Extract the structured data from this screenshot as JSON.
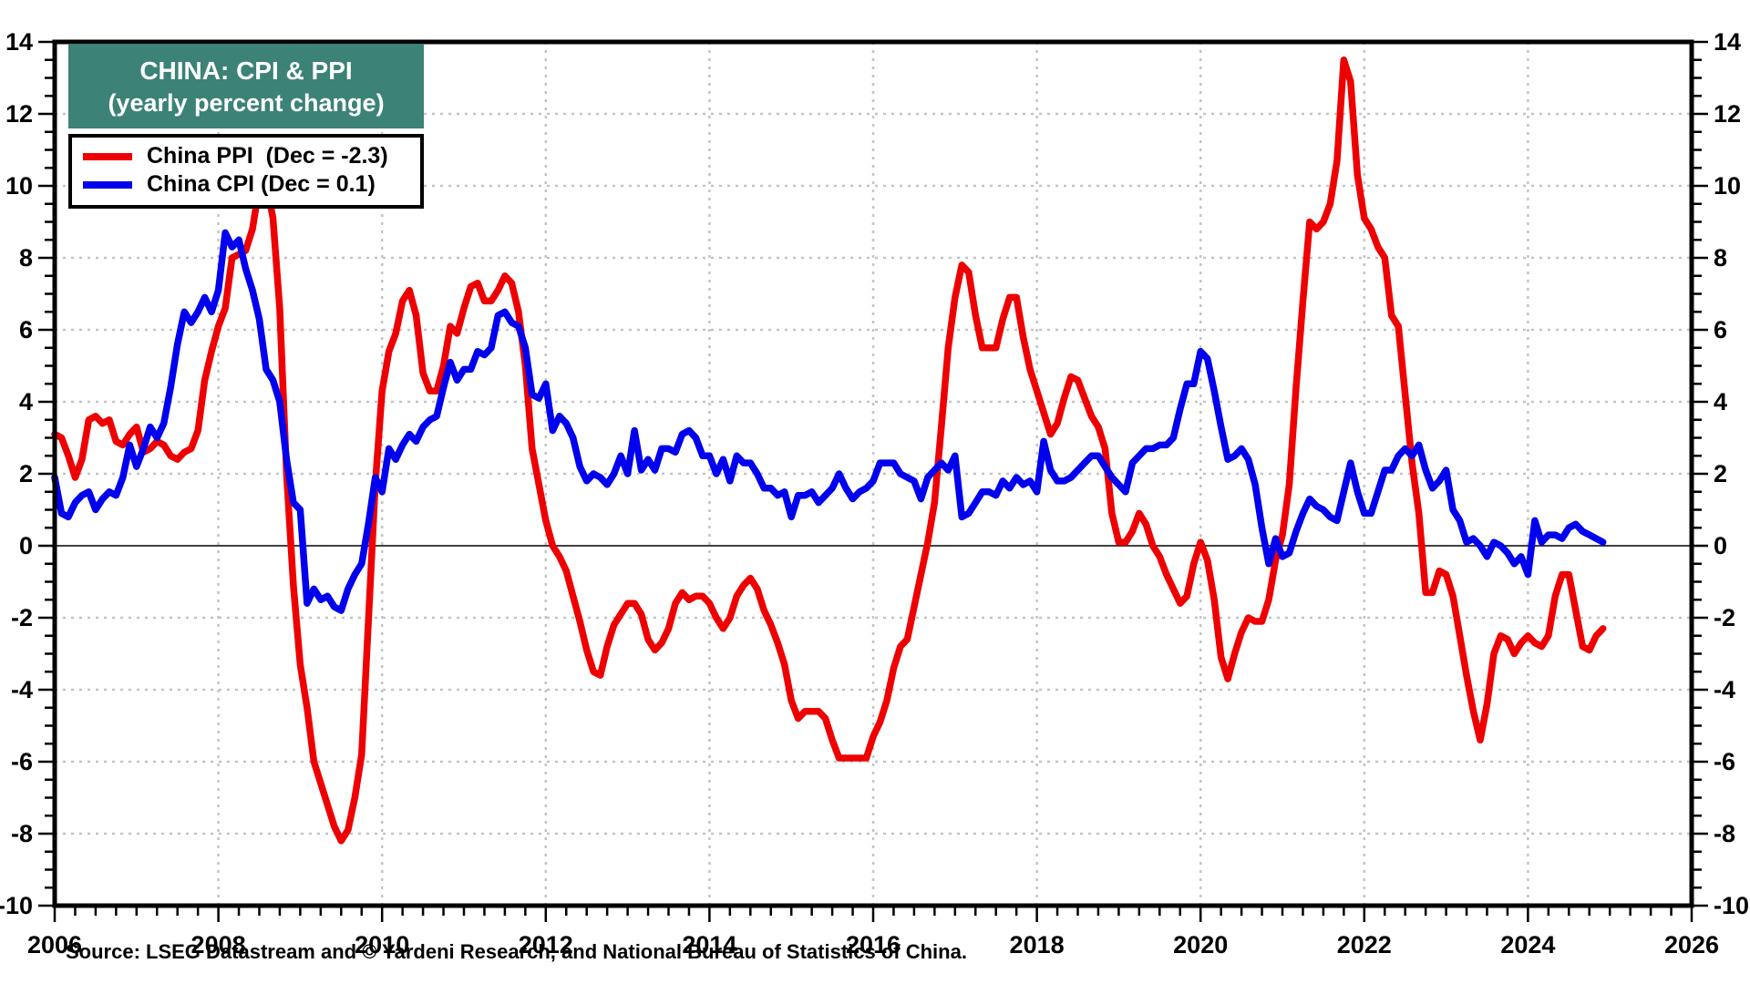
{
  "title": {
    "line1": "CHINA: CPI & PPI",
    "line2": "(yearly percent change)",
    "box_color": "#3C8276"
  },
  "legend": [
    {
      "label": "China PPI  (Dec = -2.3)",
      "color": "#ee0000"
    },
    {
      "label": "China CPI (Dec = 0.1)",
      "color": "#0000ee"
    }
  ],
  "source": "Source: LSEG Datastream and © Yardeni Research, and National Bureau of Statistics of China.",
  "chart_data": {
    "type": "line",
    "title": "CHINA: CPI & PPI (yearly percent change)",
    "xlabel": "",
    "ylabel": "",
    "xlim": [
      2006,
      2026
    ],
    "ylim": [
      -10,
      14
    ],
    "grid": "dotted",
    "legend_position": "top-left",
    "x_unit": "monthly, Jan 2006 - Dec 2024",
    "x_start_year": 2006,
    "x_tick_labels": [
      "2006",
      "2008",
      "2010",
      "2012",
      "2014",
      "2016",
      "2018",
      "2020",
      "2022",
      "2024",
      "2026"
    ],
    "y_ticks": [
      14,
      12,
      10,
      8,
      6,
      4,
      2,
      0,
      -2,
      -4,
      -6,
      -8,
      -10
    ],
    "grid_years": [
      2008,
      2010,
      2012,
      2014,
      2016,
      2018,
      2020,
      2022,
      2024
    ],
    "grid_values": [
      12,
      10,
      8,
      6,
      4,
      2,
      -2,
      -4,
      -6,
      -8
    ],
    "series": [
      {
        "id": "ppi",
        "name": "China PPI",
        "color": "#ee0000",
        "last_label": "Dec = -2.3",
        "values": [
          3.1,
          3.0,
          2.5,
          1.9,
          2.4,
          3.5,
          3.6,
          3.4,
          3.5,
          2.9,
          2.8,
          3.1,
          3.3,
          2.6,
          2.7,
          2.9,
          2.8,
          2.5,
          2.4,
          2.6,
          2.7,
          3.2,
          4.6,
          5.4,
          6.1,
          6.6,
          8.0,
          8.1,
          8.2,
          8.8,
          10.0,
          10.1,
          9.1,
          6.6,
          2.0,
          -1.1,
          -3.3,
          -4.5,
          -6.0,
          -6.6,
          -7.2,
          -7.8,
          -8.2,
          -7.9,
          -7.0,
          -5.8,
          -2.1,
          1.7,
          4.3,
          5.4,
          5.9,
          6.8,
          7.1,
          6.4,
          4.8,
          4.3,
          4.3,
          5.0,
          6.1,
          5.9,
          6.6,
          7.2,
          7.3,
          6.8,
          6.8,
          7.1,
          7.5,
          7.3,
          6.5,
          5.0,
          2.7,
          1.7,
          0.7,
          0.0,
          -0.3,
          -0.7,
          -1.4,
          -2.1,
          -2.9,
          -3.5,
          -3.6,
          -2.8,
          -2.2,
          -1.9,
          -1.6,
          -1.6,
          -1.9,
          -2.6,
          -2.9,
          -2.7,
          -2.3,
          -1.6,
          -1.3,
          -1.5,
          -1.4,
          -1.4,
          -1.6,
          -2.0,
          -2.3,
          -2.0,
          -1.4,
          -1.1,
          -0.9,
          -1.2,
          -1.8,
          -2.2,
          -2.7,
          -3.3,
          -4.3,
          -4.8,
          -4.6,
          -4.6,
          -4.6,
          -4.8,
          -5.4,
          -5.9,
          -5.9,
          -5.9,
          -5.9,
          -5.9,
          -5.3,
          -4.9,
          -4.3,
          -3.4,
          -2.8,
          -2.6,
          -1.7,
          -0.8,
          0.1,
          1.2,
          3.3,
          5.5,
          6.9,
          7.8,
          7.6,
          6.4,
          5.5,
          5.5,
          5.5,
          6.3,
          6.9,
          6.9,
          5.8,
          4.9,
          4.3,
          3.7,
          3.1,
          3.4,
          4.1,
          4.7,
          4.6,
          4.1,
          3.6,
          3.3,
          2.7,
          0.9,
          0.1,
          0.1,
          0.4,
          0.9,
          0.6,
          0.0,
          -0.3,
          -0.8,
          -1.2,
          -1.6,
          -1.4,
          -0.5,
          0.1,
          -0.4,
          -1.5,
          -3.1,
          -3.7,
          -3.0,
          -2.4,
          -2.0,
          -2.1,
          -2.1,
          -1.5,
          -0.4,
          0.3,
          1.7,
          4.4,
          6.8,
          9.0,
          8.8,
          9.0,
          9.5,
          10.7,
          13.5,
          12.9,
          10.3,
          9.1,
          8.8,
          8.3,
          8.0,
          6.4,
          6.1,
          4.2,
          2.3,
          0.9,
          -1.3,
          -1.3,
          -0.7,
          -0.8,
          -1.4,
          -2.5,
          -3.6,
          -4.6,
          -5.4,
          -4.4,
          -3.0,
          -2.5,
          -2.6,
          -3.0,
          -2.7,
          -2.5,
          -2.7,
          -2.8,
          -2.5,
          -1.4,
          -0.8,
          -0.8,
          -1.8,
          -2.8,
          -2.9,
          -2.5,
          -2.3
        ]
      },
      {
        "id": "cpi",
        "name": "China CPI",
        "color": "#0000ee",
        "last_label": "Dec = 0.1",
        "values": [
          1.9,
          0.9,
          0.8,
          1.2,
          1.4,
          1.5,
          1.0,
          1.3,
          1.5,
          1.4,
          1.9,
          2.8,
          2.2,
          2.7,
          3.3,
          3.0,
          3.4,
          4.4,
          5.6,
          6.5,
          6.2,
          6.5,
          6.9,
          6.5,
          7.1,
          8.7,
          8.3,
          8.5,
          7.7,
          7.1,
          6.3,
          4.9,
          4.6,
          4.0,
          2.4,
          1.2,
          1.0,
          -1.6,
          -1.2,
          -1.5,
          -1.4,
          -1.7,
          -1.8,
          -1.2,
          -0.8,
          -0.5,
          0.6,
          1.9,
          1.5,
          2.7,
          2.4,
          2.8,
          3.1,
          2.9,
          3.3,
          3.5,
          3.6,
          4.4,
          5.1,
          4.6,
          4.9,
          4.9,
          5.4,
          5.3,
          5.5,
          6.4,
          6.5,
          6.2,
          6.1,
          5.5,
          4.2,
          4.1,
          4.5,
          3.2,
          3.6,
          3.4,
          3.0,
          2.2,
          1.8,
          2.0,
          1.9,
          1.7,
          2.0,
          2.5,
          2.0,
          3.2,
          2.1,
          2.4,
          2.1,
          2.7,
          2.7,
          2.6,
          3.1,
          3.2,
          3.0,
          2.5,
          2.5,
          2.0,
          2.4,
          1.8,
          2.5,
          2.3,
          2.3,
          2.0,
          1.6,
          1.6,
          1.4,
          1.5,
          0.8,
          1.4,
          1.4,
          1.5,
          1.2,
          1.4,
          1.6,
          2.0,
          1.6,
          1.3,
          1.5,
          1.6,
          1.8,
          2.3,
          2.3,
          2.3,
          2.0,
          1.9,
          1.8,
          1.3,
          1.9,
          2.1,
          2.3,
          2.1,
          2.5,
          0.8,
          0.9,
          1.2,
          1.5,
          1.5,
          1.4,
          1.8,
          1.6,
          1.9,
          1.7,
          1.8,
          1.5,
          2.9,
          2.1,
          1.8,
          1.8,
          1.9,
          2.1,
          2.3,
          2.5,
          2.5,
          2.2,
          1.9,
          1.7,
          1.5,
          2.3,
          2.5,
          2.7,
          2.7,
          2.8,
          2.8,
          3.0,
          3.8,
          4.5,
          4.5,
          5.4,
          5.2,
          4.3,
          3.3,
          2.4,
          2.5,
          2.7,
          2.4,
          1.7,
          0.5,
          -0.5,
          0.2,
          -0.3,
          -0.2,
          0.4,
          0.9,
          1.3,
          1.1,
          1.0,
          0.8,
          0.7,
          1.5,
          2.3,
          1.5,
          0.9,
          0.9,
          1.5,
          2.1,
          2.1,
          2.5,
          2.7,
          2.5,
          2.8,
          2.1,
          1.6,
          1.8,
          2.1,
          1.0,
          0.7,
          0.1,
          0.2,
          0.0,
          -0.3,
          0.1,
          0.0,
          -0.2,
          -0.5,
          -0.3,
          -0.8,
          0.7,
          0.1,
          0.3,
          0.3,
          0.2,
          0.5,
          0.6,
          0.4,
          0.3,
          0.2,
          0.1
        ]
      }
    ]
  }
}
